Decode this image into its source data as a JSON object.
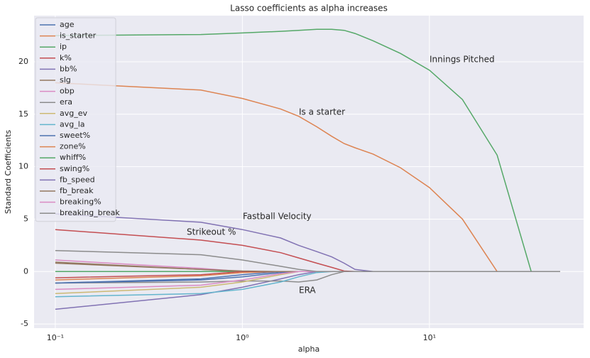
{
  "chart_data": {
    "type": "line",
    "title": "Lasso coefficients as alpha increases",
    "xlabel": "alpha",
    "ylabel": "Standard Coefficients",
    "xscale": "log",
    "grid": true,
    "legend": "upper left",
    "xlim": [
      0.077,
      66.7
    ],
    "ylim": [
      -5.4,
      24.4
    ],
    "xticks": [
      {
        "value": 0.1,
        "label": "10⁻¹"
      },
      {
        "value": 1,
        "label": "10⁰"
      },
      {
        "value": 10,
        "label": "10¹"
      }
    ],
    "yticks": [
      -5,
      0,
      5,
      10,
      15,
      20
    ],
    "x": [
      0.1,
      0.6,
      1,
      1.6,
      2,
      2.5,
      3,
      3.5,
      4,
      5,
      7,
      10,
      15,
      23,
      35,
      50
    ],
    "annotations": [
      "Innings Pitched",
      "Is a starter",
      "Fastball Velocity",
      "Strikeout %",
      "ERA"
    ],
    "series": [
      {
        "name": "age",
        "color": "#4c72b0",
        "values": [
          -1.1,
          -0.7,
          -0.3,
          0,
          0,
          0,
          0,
          0,
          0,
          0,
          0,
          0,
          0,
          0,
          0,
          0
        ]
      },
      {
        "name": "is_starter",
        "color": "#dd8452",
        "values": [
          18.0,
          17.3,
          16.5,
          15.5,
          14.8,
          13.8,
          12.9,
          12.2,
          11.8,
          11.2,
          9.9,
          8.0,
          5.0,
          0,
          0,
          0
        ]
      },
      {
        "name": "ip",
        "color": "#55a868",
        "values": [
          22.5,
          22.6,
          22.75,
          22.9,
          23.0,
          23.1,
          23.1,
          23.0,
          22.7,
          22.0,
          20.8,
          19.2,
          16.4,
          11.1,
          0,
          0
        ]
      },
      {
        "name": "k%",
        "color": "#c44e52",
        "values": [
          4.0,
          3.0,
          2.5,
          1.8,
          1.3,
          0.8,
          0.4,
          0.05,
          0,
          0,
          0,
          0,
          0,
          0,
          0,
          0
        ]
      },
      {
        "name": "bb%",
        "color": "#8172b3",
        "values": [
          -3.6,
          -2.2,
          -1.5,
          -0.7,
          -0.3,
          0,
          0,
          0,
          0,
          0,
          0,
          0,
          0,
          0,
          0,
          0
        ]
      },
      {
        "name": "slg",
        "color": "#937860",
        "values": [
          0.8,
          0.2,
          0,
          0,
          0,
          0,
          0,
          0,
          0,
          0,
          0,
          0,
          0,
          0,
          0,
          0
        ]
      },
      {
        "name": "obp",
        "color": "#da8bc3",
        "values": [
          1.1,
          0.3,
          0,
          0,
          0,
          0,
          0,
          0,
          0,
          0,
          0,
          0,
          0,
          0,
          0,
          0
        ]
      },
      {
        "name": "era",
        "color": "#8c8c8c",
        "values": [
          -1.1,
          -1.0,
          -0.9,
          -0.9,
          -1.0,
          -0.8,
          -0.3,
          0,
          0,
          0,
          0,
          0,
          0,
          0,
          0,
          0
        ]
      },
      {
        "name": "avg_ev",
        "color": "#ccb974",
        "values": [
          -2.1,
          -1.5,
          -1.0,
          -0.3,
          0,
          0,
          0,
          0,
          0,
          0,
          0,
          0,
          0,
          0,
          0,
          0
        ]
      },
      {
        "name": "avg_la",
        "color": "#64b5cd",
        "values": [
          -2.4,
          -2.1,
          -1.7,
          -1.0,
          -0.5,
          -0.1,
          0,
          0,
          0,
          0,
          0,
          0,
          0,
          0,
          0,
          0
        ]
      },
      {
        "name": "sweet%",
        "color": "#4c72b0",
        "values": [
          -1.1,
          -0.8,
          -0.5,
          -0.1,
          0,
          0,
          0,
          0,
          0,
          0,
          0,
          0,
          0,
          0,
          0,
          0
        ]
      },
      {
        "name": "zone%",
        "color": "#dd8452",
        "values": [
          -0.8,
          -0.4,
          -0.1,
          0,
          0,
          0,
          0,
          0,
          0,
          0,
          0,
          0,
          0,
          0,
          0,
          0
        ]
      },
      {
        "name": "whiff%",
        "color": "#55a868",
        "values": [
          0,
          0,
          0,
          0,
          0,
          0,
          0,
          0,
          0,
          0,
          0,
          0,
          0,
          0,
          0,
          0
        ]
      },
      {
        "name": "swing%",
        "color": "#c44e52",
        "values": [
          -0.6,
          -0.3,
          0,
          0,
          0,
          0,
          0,
          0,
          0,
          0,
          0,
          0,
          0,
          0,
          0,
          0
        ]
      },
      {
        "name": "fb_speed",
        "color": "#8172b3",
        "values": [
          5.5,
          4.7,
          4.0,
          3.2,
          2.5,
          1.9,
          1.4,
          0.8,
          0.2,
          0,
          0,
          0,
          0,
          0,
          0,
          0
        ]
      },
      {
        "name": "fb_break",
        "color": "#937860",
        "values": [
          0.9,
          0.2,
          0.05,
          0,
          0,
          0,
          0,
          0,
          0,
          0,
          0,
          0,
          0,
          0,
          0,
          0
        ]
      },
      {
        "name": "breaking%",
        "color": "#da8bc3",
        "values": [
          -1.7,
          -1.3,
          -0.8,
          -0.2,
          0,
          0,
          0,
          0,
          0,
          0,
          0,
          0,
          0,
          0,
          0,
          0
        ]
      },
      {
        "name": "breaking_break",
        "color": "#8c8c8c",
        "values": [
          2.0,
          1.6,
          1.1,
          0.5,
          0.2,
          0,
          0,
          0,
          0,
          0,
          0,
          0,
          0,
          0,
          0,
          0
        ]
      }
    ]
  }
}
